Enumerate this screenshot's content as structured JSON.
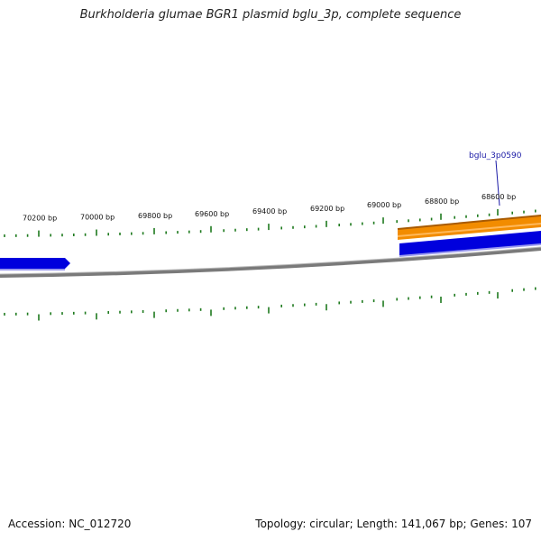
{
  "title": "Burkholderia glumae BGR1 plasmid bglu_3p, complete sequence",
  "footer": {
    "accession": "Accession: NC_012720",
    "stats": "Topology: circular; Length: 141,067 bp; Genes: 107"
  },
  "ticks": {
    "labels": [
      "70200 bp",
      "70000 bp",
      "69800 bp",
      "69600 bp",
      "69400 bp",
      "69200 bp",
      "69000 bp",
      "68800 bp",
      "68600 bp"
    ],
    "color": "#1e7a1e"
  },
  "genes": [
    {
      "label": "bglu_3p0590",
      "color": "#0000dd"
    }
  ],
  "colors": {
    "backbone": "#8a8a8a",
    "forward_gene": "#0000dd",
    "orange_feature": "#f28c00"
  }
}
